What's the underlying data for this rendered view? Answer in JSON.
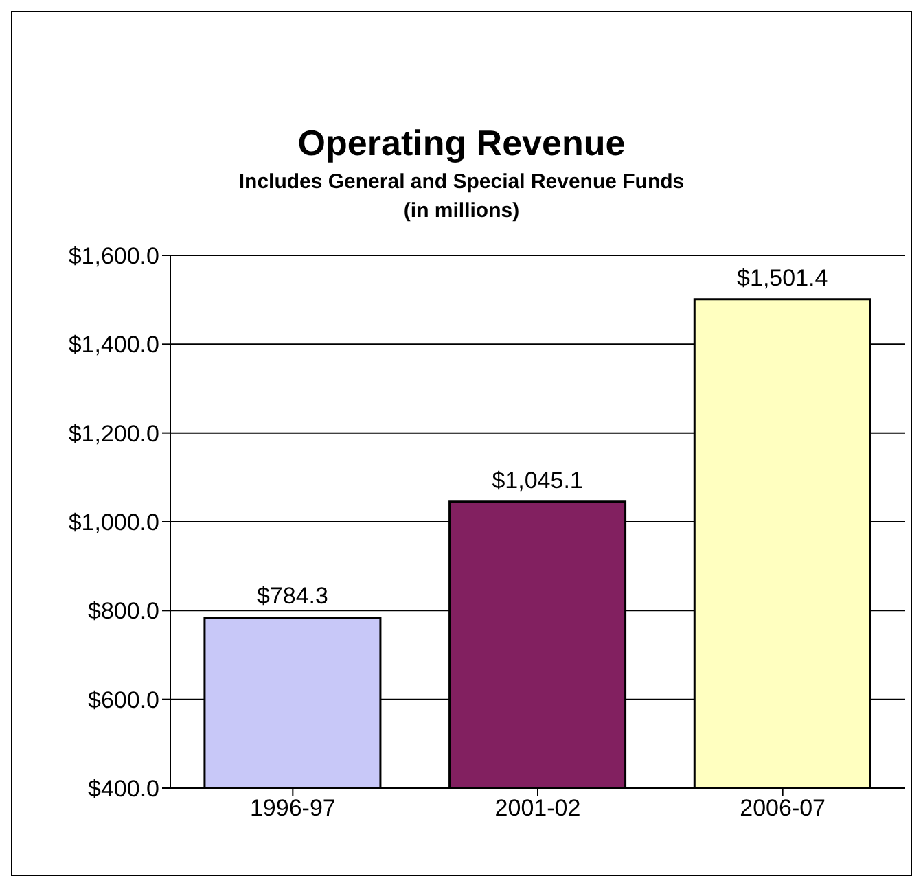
{
  "chart_data": {
    "type": "bar",
    "title": "Operating Revenue",
    "subtitle": "Includes General and Special Revenue Funds\n(in millions)",
    "categories": [
      "1996-97",
      "2001-02",
      "2006-07"
    ],
    "values": [
      784.3,
      1045.1,
      1501.4
    ],
    "colors": [
      "#c8c8f8",
      "#822060",
      "#ffffc0"
    ],
    "value_labels": [
      "$784.3",
      "$1,045.1",
      "$1,501.4"
    ],
    "ylim": [
      400,
      1600
    ],
    "yticks": [
      {
        "value": 400,
        "label": "$400.0"
      },
      {
        "value": 600,
        "label": "$600.0"
      },
      {
        "value": 800,
        "label": "$800.0"
      },
      {
        "value": 1000,
        "label": "$1,000.0"
      },
      {
        "value": 1200,
        "label": "$1,200.0"
      },
      {
        "value": 1400,
        "label": "$1,400.0"
      },
      {
        "value": 1600,
        "label": "$1,600.0"
      }
    ],
    "grid": "y"
  }
}
